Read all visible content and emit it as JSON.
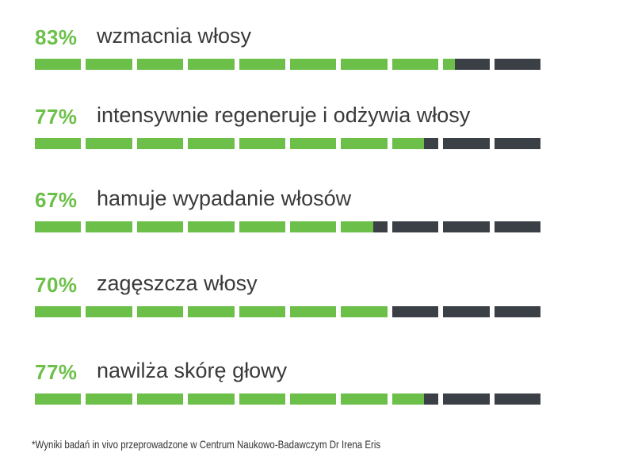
{
  "colors": {
    "fill": "#6cc04a",
    "empty": "#3b4046",
    "percent": "#6cc04a"
  },
  "chart_data": {
    "type": "bar",
    "orientation": "horizontal",
    "segments_per_bar": 10,
    "items": [
      {
        "value": 83,
        "value_label": "83%",
        "label": "wzmacnia włosy"
      },
      {
        "value": 77,
        "value_label": "77%",
        "label": "intensywnie regeneruje i odżywia włosy"
      },
      {
        "value": 67,
        "value_label": "67%",
        "label": "hamuje wypadanie włosów"
      },
      {
        "value": 70,
        "value_label": "70%",
        "label": "zagęszcza włosy"
      },
      {
        "value": 77,
        "value_label": "77%",
        "label": "nawilża skórę głowy"
      }
    ],
    "xlim": [
      0,
      100
    ]
  },
  "footnote": "*Wyniki badań in vivo przeprowadzone w Centrum Naukowo-Badawczym Dr Irena Eris"
}
